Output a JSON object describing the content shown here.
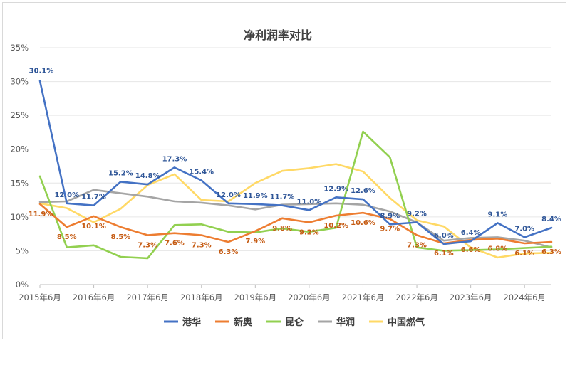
{
  "chart_data": {
    "type": "line",
    "title": "净利润率对比",
    "x_tick_labels": [
      "2015年6月",
      "2016年6月",
      "2017年6月",
      "2018年6月",
      "2019年6月",
      "2020年6月",
      "2021年6月",
      "2022年6月",
      "2023年6月",
      "2024年6月"
    ],
    "x": [
      "2015年6月",
      "2015年12月",
      "2016年6月",
      "2016年12月",
      "2017年6月",
      "2017年12月",
      "2018年6月",
      "2018年12月",
      "2019年6月",
      "2019年12月",
      "2020年6月",
      "2020年12月",
      "2021年6月",
      "2021年12月",
      "2022年6月",
      "2022年12月",
      "2023年6月",
      "2023年12月",
      "2024年6月",
      "2024年12月"
    ],
    "ylim": [
      0,
      35
    ],
    "y_ticks": [
      "0%",
      "5%",
      "10%",
      "15%",
      "20%",
      "25%",
      "30%",
      "35%"
    ],
    "y_unit": "%",
    "grid": "horizontal",
    "legend_position": "bottom",
    "series": [
      {
        "name": "港华",
        "color": "#4472c4",
        "label_color": "#2e5597",
        "values": [
          30.1,
          12.0,
          11.7,
          15.2,
          14.8,
          17.3,
          15.4,
          12.0,
          11.9,
          11.7,
          11.0,
          12.9,
          12.6,
          8.9,
          9.2,
          6.0,
          6.4,
          9.1,
          7.0,
          8.4
        ],
        "labels": [
          "30.1%",
          "12.0%",
          "11.7%",
          "15.2%",
          "14.8%",
          "17.3%",
          "15.4%",
          "12.0%",
          "11.9%",
          "11.7%",
          "11.0%",
          "12.9%",
          "12.6%",
          "8.9%",
          "9.2%",
          "6.0%",
          "6.4%",
          "9.1%",
          "7.0%",
          "8.4%"
        ]
      },
      {
        "name": "新奥",
        "color": "#ed7d31",
        "label_color": "#c55a11",
        "values": [
          11.9,
          8.5,
          10.1,
          8.5,
          7.3,
          7.6,
          7.3,
          6.3,
          7.9,
          9.8,
          9.2,
          10.2,
          10.6,
          9.7,
          7.3,
          6.1,
          6.6,
          6.8,
          6.1,
          6.3
        ],
        "labels": [
          "11.9%",
          "8.5%",
          "10.1%",
          "8.5%",
          "7.3%",
          "7.6%",
          "7.3%",
          "6.3%",
          "7.9%",
          "9.8%",
          "9.2%",
          "10.2%",
          "10.6%",
          "9.7%",
          "7.3%",
          "6.1%",
          "6.6%",
          "6.8%",
          "6.1%",
          "6.3%"
        ]
      },
      {
        "name": "昆仑",
        "color": "#92d050",
        "label_color": "#70ad47",
        "values": [
          16.0,
          5.5,
          5.8,
          4.1,
          3.9,
          8.8,
          8.9,
          7.8,
          7.7,
          8.3,
          7.8,
          8.4,
          22.6,
          18.8,
          5.5,
          5.0,
          5.1,
          5.2,
          5.4,
          5.6
        ],
        "labels": []
      },
      {
        "name": "华润",
        "color": "#a5a5a5",
        "label_color": "#7f7f7f",
        "values": [
          12.2,
          12.3,
          14.0,
          13.5,
          13.0,
          12.3,
          12.1,
          11.7,
          11.1,
          11.8,
          11.9,
          12.0,
          11.8,
          10.8,
          9.2,
          6.5,
          6.9,
          7.0,
          6.5,
          5.5
        ],
        "labels": []
      },
      {
        "name": "中国燃气",
        "color": "#ffd966",
        "label_color": "#bf9000",
        "values": [
          12.0,
          11.3,
          9.2,
          11.2,
          14.7,
          16.3,
          12.5,
          12.3,
          15.0,
          16.8,
          17.2,
          17.8,
          16.7,
          12.8,
          9.5,
          8.6,
          5.5,
          4.0,
          4.6,
          4.7
        ],
        "labels": []
      }
    ]
  }
}
